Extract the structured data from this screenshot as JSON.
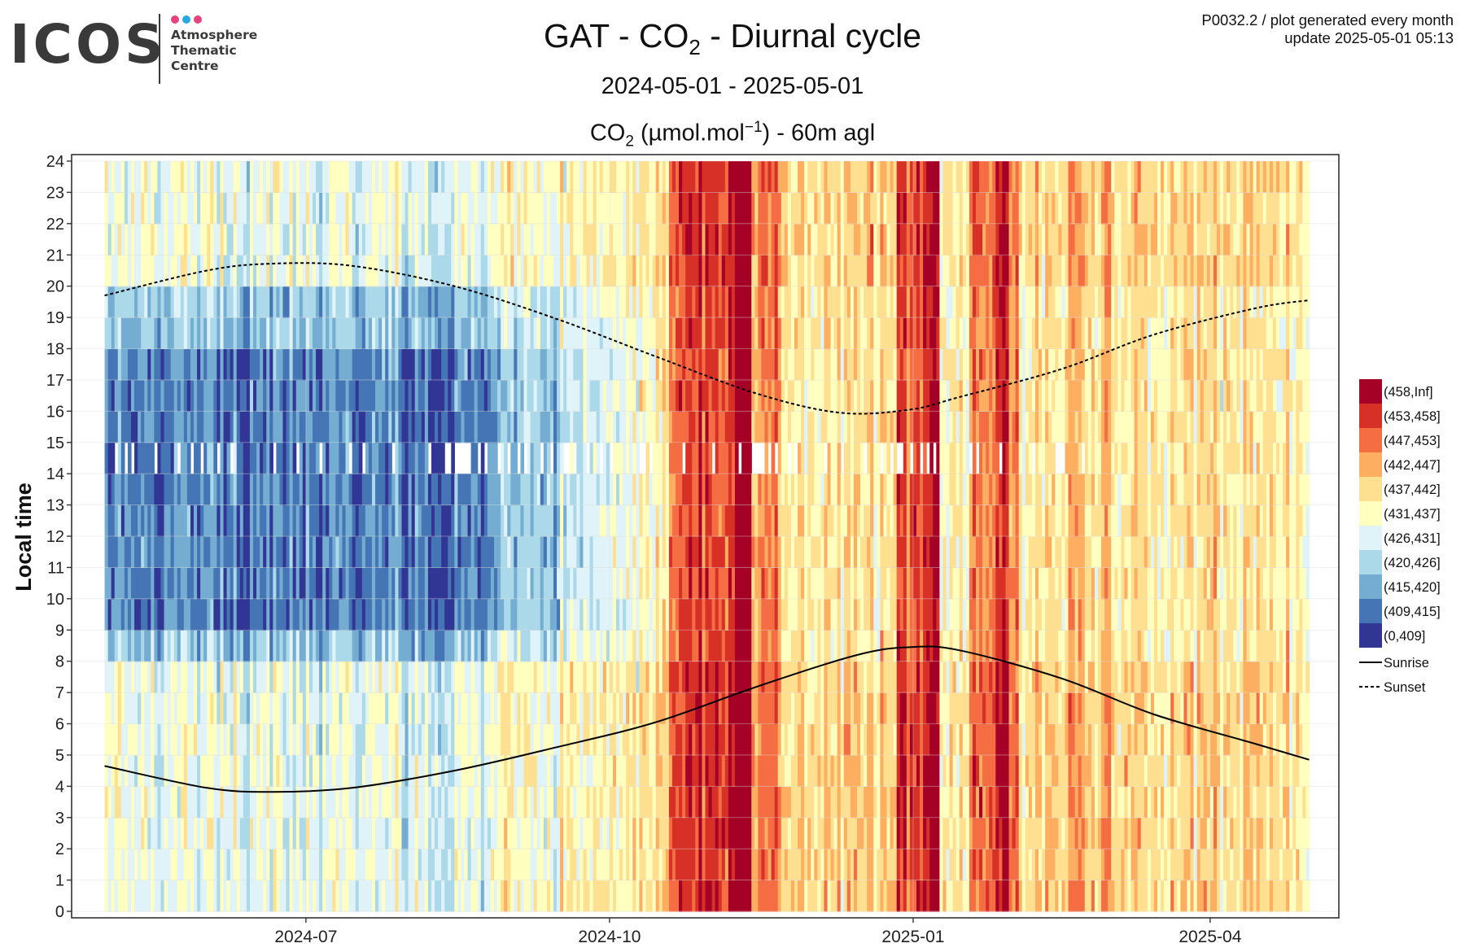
{
  "header": {
    "logo_word": "ICOS",
    "logo_lines": [
      "Atmosphere",
      "Thematic",
      "Centre"
    ],
    "logo_dot_colors": [
      "#e8417e",
      "#29a8e0",
      "#e8417e"
    ],
    "title_pre": "GAT - CO",
    "title_sub": "2",
    "title_post": " - Diurnal cycle",
    "subtitle": "2024-05-01 - 2025-05-01",
    "variable_pre": "CO",
    "variable_sub": "2",
    "variable_mid": " (µmol.mol",
    "variable_sup": "−1",
    "variable_post": ") - 60m agl",
    "meta_line1": "P0032.2 / plot generated every month",
    "meta_line2": "update  2025-05-01 05:13"
  },
  "chart_data": {
    "type": "heatmap",
    "x_start": "2024-05-01",
    "x_end": "2025-05-01",
    "xlim": [
      "2024-04-21",
      "2025-05-10"
    ],
    "x_ticks": [
      "2024-07",
      "2024-10",
      "2025-01",
      "2025-04"
    ],
    "ylabel": "Local time",
    "ylim": [
      0,
      24
    ],
    "y_ticks": [
      0,
      1,
      2,
      3,
      4,
      5,
      6,
      7,
      8,
      9,
      10,
      11,
      12,
      13,
      14,
      15,
      16,
      17,
      18,
      19,
      20,
      21,
      22,
      23,
      24
    ],
    "grid": true,
    "legend_position": "right",
    "legend": [
      {
        "label": "(458,Inf]",
        "color": "#a50026"
      },
      {
        "label": "(453,458]",
        "color": "#d73027"
      },
      {
        "label": "(447,453]",
        "color": "#f46d43"
      },
      {
        "label": "(442,447]",
        "color": "#fdae61"
      },
      {
        "label": "(437,442]",
        "color": "#fee090"
      },
      {
        "label": "(431,437]",
        "color": "#ffffbf"
      },
      {
        "label": "(426,431]",
        "color": "#e0f3f8"
      },
      {
        "label": "(420,426]",
        "color": "#abd9e9"
      },
      {
        "label": "(415,420]",
        "color": "#74add1"
      },
      {
        "label": "(409,415]",
        "color": "#4575b4"
      },
      {
        "label": "(0,409]",
        "color": "#313695"
      }
    ],
    "lines": [
      {
        "name": "Sunrise",
        "style": "solid",
        "x": [
          "2024-05-01",
          "2024-06-01",
          "2024-06-21",
          "2024-07-15",
          "2024-08-15",
          "2024-09-15",
          "2024-10-15",
          "2024-11-15",
          "2024-12-15",
          "2024-12-31",
          "2025-01-15",
          "2025-02-15",
          "2025-03-15",
          "2025-04-15",
          "2025-05-01"
        ],
        "y": [
          4.65,
          3.95,
          3.82,
          3.95,
          4.5,
          5.25,
          6.05,
          7.2,
          8.2,
          8.45,
          8.35,
          7.45,
          6.3,
          5.35,
          4.85
        ]
      },
      {
        "name": "Sunset",
        "style": "dashed",
        "x": [
          "2024-05-01",
          "2024-06-01",
          "2024-06-21",
          "2024-07-15",
          "2024-08-15",
          "2024-09-15",
          "2024-10-15",
          "2024-11-15",
          "2024-12-10",
          "2024-12-31",
          "2025-01-15",
          "2025-02-15",
          "2025-03-15",
          "2025-04-15",
          "2025-05-01"
        ],
        "y": [
          19.7,
          20.5,
          20.72,
          20.65,
          20.0,
          18.95,
          17.75,
          16.55,
          15.95,
          16.05,
          16.45,
          17.35,
          18.45,
          19.3,
          19.55
        ]
      }
    ]
  }
}
